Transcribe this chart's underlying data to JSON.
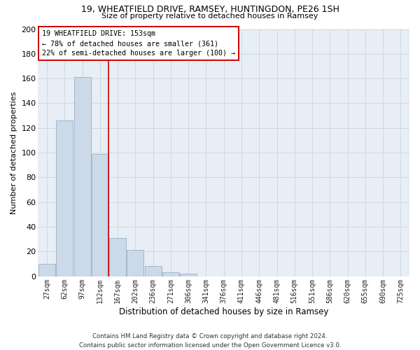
{
  "title1": "19, WHEATFIELD DRIVE, RAMSEY, HUNTINGDON, PE26 1SH",
  "title2": "Size of property relative to detached houses in Ramsey",
  "xlabel": "Distribution of detached houses by size in Ramsey",
  "ylabel": "Number of detached properties",
  "bar_labels": [
    "27sqm",
    "62sqm",
    "97sqm",
    "132sqm",
    "167sqm",
    "202sqm",
    "236sqm",
    "271sqm",
    "306sqm",
    "341sqm",
    "376sqm",
    "411sqm",
    "446sqm",
    "481sqm",
    "516sqm",
    "551sqm",
    "586sqm",
    "620sqm",
    "655sqm",
    "690sqm",
    "725sqm"
  ],
  "bar_values": [
    10,
    126,
    161,
    99,
    31,
    21,
    8,
    3,
    2,
    0,
    0,
    0,
    0,
    0,
    0,
    0,
    0,
    0,
    0,
    0,
    0
  ],
  "annotation_line1": "19 WHEATFIELD DRIVE: 153sqm",
  "annotation_line2": "← 78% of detached houses are smaller (361)",
  "annotation_line3": "22% of semi-detached houses are larger (100) →",
  "bar_color": "#ccd9e8",
  "bar_edge_color": "#9ab0c8",
  "vline_color": "#cc0000",
  "annotation_box_edge_color": "#cc0000",
  "annotation_bg": "#ffffff",
  "grid_color": "#d0d8e0",
  "bg_color": "#e8eef5",
  "footer_text": "Contains HM Land Registry data © Crown copyright and database right 2024.\nContains public sector information licensed under the Open Government Licence v3.0.",
  "ylim": [
    0,
    200
  ],
  "yticks": [
    0,
    20,
    40,
    60,
    80,
    100,
    120,
    140,
    160,
    180,
    200
  ],
  "vline_x_index": 3.47
}
